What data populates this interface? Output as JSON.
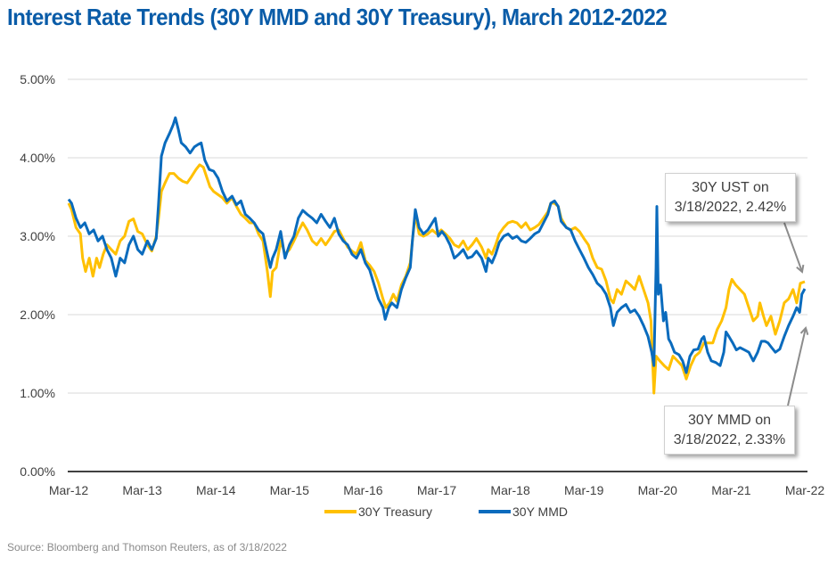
{
  "title": "Interest Rate Trends (30Y MMD and 30Y Treasury), March 2012-2022",
  "source": "Source: Bloomberg and Thomson Reuters, as of 3/18/2022",
  "callouts": {
    "ust": {
      "line1": "30Y UST on",
      "line2": "3/18/2022, 2.42%"
    },
    "mmd": {
      "line1": "30Y MMD on",
      "line2": "3/18/2022, 2.33%"
    }
  },
  "chart_data": {
    "type": "line",
    "title": "Interest Rate Trends (30Y MMD and 30Y Treasury), March 2012-2022",
    "xlabel": "",
    "ylabel": "",
    "x_unit": "years since Mar-2012",
    "xlim": [
      0,
      10
    ],
    "ylim": [
      0,
      5
    ],
    "grid": true,
    "legend": "bottom-center",
    "y_ticks": [
      0,
      1,
      2,
      3,
      4,
      5
    ],
    "y_tick_labels": [
      "0.00%",
      "1.00%",
      "2.00%",
      "3.00%",
      "4.00%",
      "5.00%"
    ],
    "x_ticks": [
      0,
      1,
      2,
      3,
      4,
      5,
      6,
      7,
      8,
      9,
      10
    ],
    "x_tick_labels": [
      "Mar-12",
      "Mar-13",
      "Mar-14",
      "Mar-15",
      "Mar-16",
      "Mar-17",
      "Mar-18",
      "Mar-19",
      "Mar-20",
      "Mar-21",
      "Mar-22"
    ],
    "annotations": [
      {
        "text": "30Y UST on 3/18/2022, 2.42%",
        "x": 10,
        "y": 2.42
      },
      {
        "text": "30Y MMD on 3/18/2022, 2.33%",
        "x": 10,
        "y": 2.33
      }
    ],
    "series": [
      {
        "name": "30Y Treasury",
        "color": "#ffc000",
        "x": [
          0.0,
          0.04,
          0.1,
          0.16,
          0.19,
          0.23,
          0.28,
          0.33,
          0.38,
          0.42,
          0.47,
          0.52,
          0.58,
          0.64,
          0.7,
          0.76,
          0.82,
          0.88,
          0.94,
          1.0,
          1.07,
          1.13,
          1.19,
          1.22,
          1.26,
          1.31,
          1.37,
          1.43,
          1.49,
          1.55,
          1.61,
          1.67,
          1.73,
          1.78,
          1.83,
          1.88,
          1.92,
          1.97,
          2.03,
          2.09,
          2.15,
          2.22,
          2.28,
          2.34,
          2.4,
          2.46,
          2.52,
          2.58,
          2.64,
          2.7,
          2.74,
          2.77,
          2.82,
          2.88,
          2.94,
          3.0,
          3.06,
          3.12,
          3.18,
          3.24,
          3.31,
          3.37,
          3.43,
          3.49,
          3.55,
          3.61,
          3.67,
          3.73,
          3.79,
          3.85,
          3.91,
          3.97,
          4.03,
          4.09,
          4.15,
          4.21,
          4.27,
          4.31,
          4.36,
          4.41,
          4.46,
          4.52,
          4.58,
          4.64,
          4.67,
          4.71,
          4.76,
          4.82,
          4.88,
          4.94,
          5.0,
          5.06,
          5.12,
          5.18,
          5.24,
          5.3,
          5.36,
          5.42,
          5.48,
          5.54,
          5.61,
          5.67,
          5.7,
          5.75,
          5.8,
          5.85,
          5.91,
          5.97,
          6.03,
          6.09,
          6.15,
          6.21,
          6.27,
          6.33,
          6.39,
          6.45,
          6.51,
          6.55,
          6.6,
          6.65,
          6.69,
          6.76,
          6.82,
          6.88,
          6.94,
          7.0,
          7.06,
          7.12,
          7.18,
          7.24,
          7.3,
          7.36,
          7.4,
          7.45,
          7.51,
          7.57,
          7.63,
          7.69,
          7.75,
          7.81,
          7.87,
          7.91,
          7.95,
          7.98,
          8.03,
          8.09,
          8.15,
          8.21,
          8.27,
          8.33,
          8.39,
          8.45,
          8.51,
          8.57,
          8.63,
          8.69,
          8.75,
          8.81,
          8.87,
          8.93,
          8.97,
          9.01,
          9.06,
          9.12,
          9.18,
          9.24,
          9.3,
          9.36,
          9.39,
          9.44,
          9.48,
          9.54,
          9.6,
          9.66,
          9.72,
          9.78,
          9.84,
          9.89,
          9.94,
          10.0
        ],
        "values": [
          3.42,
          3.34,
          3.11,
          3.03,
          2.72,
          2.55,
          2.72,
          2.49,
          2.72,
          2.6,
          2.77,
          2.89,
          2.83,
          2.77,
          2.94,
          3.0,
          3.19,
          3.22,
          3.06,
          3.03,
          2.89,
          2.81,
          3.0,
          3.22,
          3.57,
          3.68,
          3.8,
          3.8,
          3.74,
          3.7,
          3.68,
          3.76,
          3.85,
          3.91,
          3.88,
          3.74,
          3.63,
          3.57,
          3.53,
          3.49,
          3.42,
          3.49,
          3.38,
          3.28,
          3.23,
          3.17,
          3.17,
          3.03,
          2.94,
          2.55,
          2.23,
          2.55,
          2.6,
          2.94,
          2.77,
          2.83,
          2.94,
          3.06,
          3.17,
          3.08,
          2.94,
          2.89,
          2.97,
          2.89,
          2.97,
          3.06,
          3.08,
          2.97,
          2.86,
          2.81,
          2.77,
          2.92,
          2.69,
          2.63,
          2.55,
          2.4,
          2.2,
          2.09,
          2.15,
          2.26,
          2.17,
          2.38,
          2.49,
          2.66,
          2.94,
          3.28,
          3.03,
          3.0,
          3.03,
          3.08,
          3.03,
          3.08,
          3.03,
          2.97,
          2.89,
          2.86,
          2.94,
          2.83,
          2.89,
          2.97,
          2.86,
          2.72,
          2.83,
          2.77,
          2.89,
          3.03,
          3.11,
          3.17,
          3.19,
          3.17,
          3.11,
          3.17,
          3.08,
          3.11,
          3.15,
          3.23,
          3.31,
          3.42,
          3.42,
          3.38,
          3.23,
          3.11,
          3.08,
          3.11,
          3.06,
          2.97,
          2.89,
          2.72,
          2.6,
          2.58,
          2.43,
          2.2,
          2.15,
          2.32,
          2.26,
          2.43,
          2.38,
          2.32,
          2.49,
          2.32,
          2.15,
          1.92,
          1.0,
          1.47,
          1.41,
          1.35,
          1.3,
          1.47,
          1.41,
          1.35,
          1.18,
          1.35,
          1.47,
          1.52,
          1.64,
          1.64,
          1.64,
          1.81,
          1.92,
          2.09,
          2.32,
          2.45,
          2.38,
          2.32,
          2.26,
          2.09,
          1.92,
          1.98,
          2.15,
          1.98,
          1.86,
          1.98,
          1.75,
          1.92,
          2.15,
          2.2,
          2.32,
          2.15,
          2.4,
          2.42
        ]
      },
      {
        "name": "30Y MMD",
        "color": "#0a6bbd",
        "x": [
          0.0,
          0.04,
          0.1,
          0.16,
          0.22,
          0.28,
          0.34,
          0.4,
          0.46,
          0.52,
          0.58,
          0.64,
          0.7,
          0.76,
          0.82,
          0.88,
          0.94,
          1.0,
          1.07,
          1.13,
          1.19,
          1.22,
          1.26,
          1.31,
          1.37,
          1.42,
          1.45,
          1.49,
          1.53,
          1.59,
          1.65,
          1.71,
          1.76,
          1.8,
          1.85,
          1.91,
          1.97,
          2.03,
          2.09,
          2.15,
          2.22,
          2.28,
          2.34,
          2.4,
          2.46,
          2.52,
          2.58,
          2.64,
          2.7,
          2.74,
          2.77,
          2.82,
          2.88,
          2.94,
          3.0,
          3.06,
          3.12,
          3.18,
          3.24,
          3.31,
          3.37,
          3.43,
          3.49,
          3.55,
          3.61,
          3.67,
          3.73,
          3.79,
          3.85,
          3.91,
          3.97,
          4.03,
          4.09,
          4.15,
          4.21,
          4.27,
          4.3,
          4.35,
          4.39,
          4.46,
          4.52,
          4.58,
          4.64,
          4.67,
          4.71,
          4.76,
          4.82,
          4.88,
          4.94,
          4.98,
          5.02,
          5.07,
          5.12,
          5.18,
          5.24,
          5.3,
          5.36,
          5.42,
          5.48,
          5.54,
          5.61,
          5.67,
          5.7,
          5.75,
          5.8,
          5.85,
          5.91,
          5.97,
          6.03,
          6.09,
          6.15,
          6.21,
          6.27,
          6.33,
          6.39,
          6.45,
          6.51,
          6.55,
          6.6,
          6.65,
          6.69,
          6.76,
          6.82,
          6.88,
          6.94,
          7.0,
          7.06,
          7.12,
          7.18,
          7.24,
          7.3,
          7.36,
          7.4,
          7.45,
          7.51,
          7.57,
          7.63,
          7.69,
          7.75,
          7.81,
          7.87,
          7.92,
          7.95,
          7.98,
          7.99,
          8.01,
          8.04,
          8.08,
          8.11,
          8.15,
          8.18,
          8.23,
          8.29,
          8.34,
          8.39,
          8.44,
          8.49,
          8.55,
          8.6,
          8.63,
          8.68,
          8.73,
          8.79,
          8.85,
          8.9,
          8.93,
          8.97,
          9.02,
          9.07,
          9.12,
          9.18,
          9.24,
          9.3,
          9.36,
          9.41,
          9.46,
          9.5,
          9.55,
          9.6,
          9.66,
          9.72,
          9.78,
          9.84,
          9.89,
          9.93,
          9.96,
          10.0
        ],
        "values": [
          3.47,
          3.42,
          3.23,
          3.11,
          3.17,
          3.03,
          3.08,
          2.94,
          3.0,
          2.83,
          2.72,
          2.49,
          2.72,
          2.66,
          2.89,
          3.0,
          2.83,
          2.77,
          2.94,
          2.83,
          2.97,
          3.4,
          4.02,
          4.19,
          4.31,
          4.42,
          4.51,
          4.36,
          4.19,
          4.14,
          4.06,
          4.14,
          4.17,
          4.19,
          3.97,
          3.85,
          3.83,
          3.74,
          3.57,
          3.45,
          3.51,
          3.4,
          3.45,
          3.28,
          3.23,
          3.17,
          3.08,
          3.03,
          2.77,
          2.6,
          2.72,
          2.83,
          3.06,
          2.72,
          2.89,
          3.0,
          3.23,
          3.33,
          3.28,
          3.23,
          3.17,
          3.28,
          3.19,
          3.11,
          3.23,
          3.03,
          2.94,
          2.89,
          2.77,
          2.72,
          2.83,
          2.66,
          2.57,
          2.38,
          2.2,
          2.09,
          1.94,
          2.09,
          2.15,
          2.09,
          2.32,
          2.47,
          2.6,
          2.94,
          3.34,
          3.11,
          3.03,
          3.08,
          3.17,
          3.23,
          3.0,
          3.06,
          3.0,
          2.89,
          2.72,
          2.77,
          2.83,
          2.72,
          2.74,
          2.81,
          2.72,
          2.55,
          2.72,
          2.66,
          2.77,
          2.92,
          3.0,
          3.03,
          2.97,
          3.0,
          2.94,
          2.92,
          2.97,
          3.03,
          3.06,
          3.17,
          3.28,
          3.42,
          3.45,
          3.38,
          3.19,
          3.11,
          3.08,
          2.94,
          2.83,
          2.72,
          2.6,
          2.51,
          2.4,
          2.35,
          2.26,
          2.09,
          1.86,
          2.03,
          2.09,
          2.13,
          2.03,
          2.06,
          1.98,
          1.86,
          1.72,
          1.52,
          1.35,
          2.6,
          3.38,
          2.26,
          2.38,
          1.92,
          2.03,
          1.69,
          1.64,
          1.52,
          1.49,
          1.41,
          1.26,
          1.47,
          1.55,
          1.56,
          1.69,
          1.72,
          1.52,
          1.41,
          1.39,
          1.35,
          1.52,
          1.78,
          1.72,
          1.64,
          1.55,
          1.58,
          1.55,
          1.52,
          1.41,
          1.52,
          1.66,
          1.66,
          1.64,
          1.58,
          1.52,
          1.56,
          1.72,
          1.86,
          1.98,
          2.09,
          2.03,
          2.26,
          2.33
        ]
      }
    ]
  }
}
